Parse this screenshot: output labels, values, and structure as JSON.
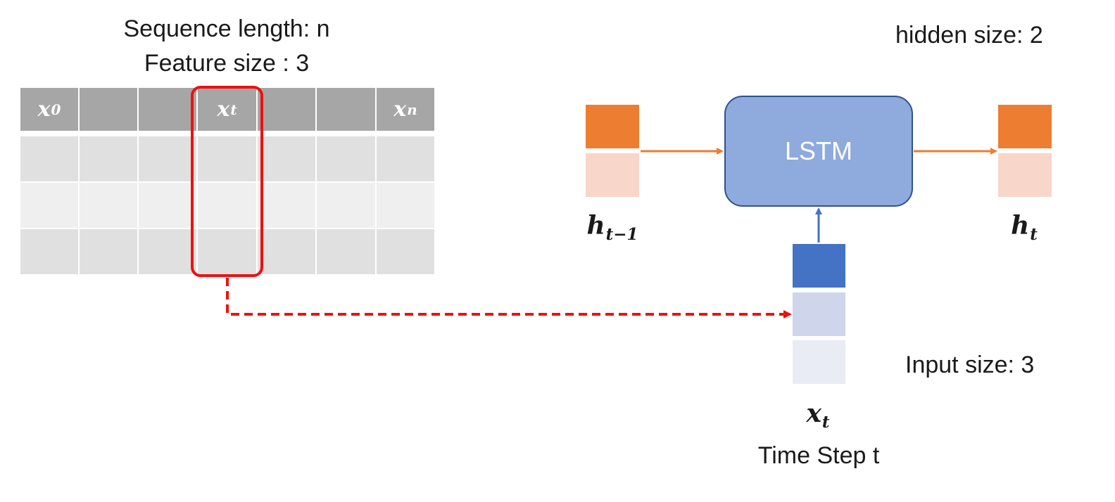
{
  "header": {
    "sequence_label": "Sequence length: n",
    "feature_label": "Feature size : 3",
    "hidden_label": "hidden size: 2",
    "input_label": "Input size: 3",
    "time_step_label": "Time Step t"
  },
  "table": {
    "columns": [
      {
        "var": "x",
        "sub": "0"
      },
      {
        "var": "",
        "sub": ""
      },
      {
        "var": "",
        "sub": ""
      },
      {
        "var": "x",
        "sub": "t"
      },
      {
        "var": "",
        "sub": ""
      },
      {
        "var": "",
        "sub": ""
      },
      {
        "var": "x",
        "sub": "n"
      }
    ],
    "rows": 3,
    "highlight_column": 3
  },
  "lstm": {
    "label": "LSTM"
  },
  "prev_hidden": {
    "var": "h",
    "sub": "t−1"
  },
  "next_hidden": {
    "var": "h",
    "sub": "t"
  },
  "input_vector": {
    "var": "x",
    "sub": "t"
  },
  "colors": {
    "table_header": "#a6a6a6",
    "table_row_dark": "#e0e0e0",
    "table_row_light": "#efefef",
    "highlight": "#ee1111",
    "lstm_fill": "#8faadc",
    "lstm_border": "#2f528f",
    "hidden_dark": "#ed7d31",
    "hidden_light": "#f8d6ca",
    "input_1": "#4472c4",
    "input_2": "#cfd5ea",
    "input_3": "#e9ebf5",
    "arrow_orange": "#ed7d31",
    "arrow_blue": "#4472c4"
  }
}
